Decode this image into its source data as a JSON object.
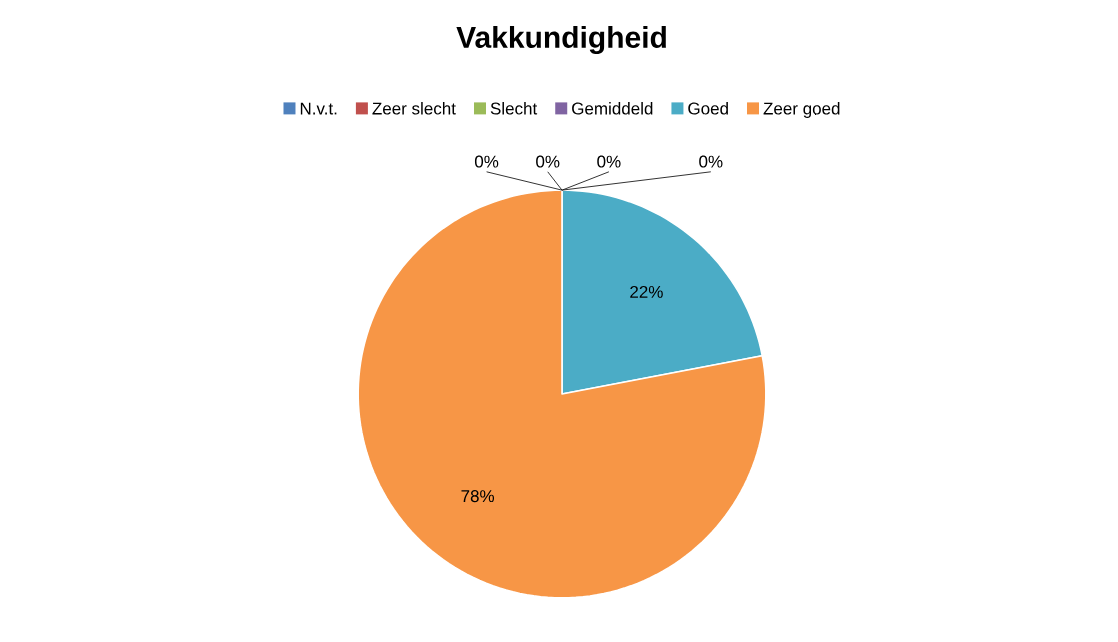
{
  "chart_data": {
    "type": "pie",
    "title": "Vakkundigheid",
    "categories": [
      "N.v.t.",
      "Zeer slecht",
      "Slecht",
      "Gemiddeld",
      "Goed",
      "Zeer goed"
    ],
    "values": [
      0,
      0,
      0,
      0,
      22,
      78
    ],
    "colors": [
      "#4f81bd",
      "#c0504d",
      "#9bbb59",
      "#8064a2",
      "#4bacc6",
      "#f79646"
    ],
    "value_labels": [
      "0%",
      "0%",
      "0%",
      "0%",
      "22%",
      "78%"
    ],
    "legend": "top"
  }
}
